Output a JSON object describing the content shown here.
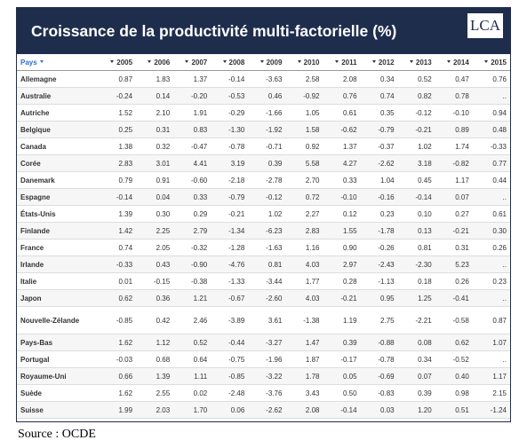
{
  "header": {
    "title": "Croissance de la productivité multi-factorielle (%)",
    "logo": "LCA"
  },
  "table": {
    "columns": [
      "Pays",
      "2005",
      "2006",
      "2007",
      "2008",
      "2009",
      "2010",
      "2011",
      "2012",
      "2013",
      "2014",
      "2015"
    ],
    "rows": [
      [
        "Allemagne",
        "0.87",
        "1.83",
        "1.37",
        "-0.14",
        "-3.63",
        "2.58",
        "2.08",
        "0.34",
        "0.52",
        "0.47",
        "0.76"
      ],
      [
        "Australie",
        "-0.24",
        "0.14",
        "-0.20",
        "-0.53",
        "0.46",
        "-0.92",
        "0.76",
        "0.74",
        "0.82",
        "0.78",
        ".."
      ],
      [
        "Autriche",
        "1.52",
        "2.10",
        "1.91",
        "-0.29",
        "-1.66",
        "1.05",
        "0.61",
        "0.35",
        "-0.12",
        "-0.10",
        "0.94"
      ],
      [
        "Belgique",
        "0.25",
        "0.31",
        "0.83",
        "-1.30",
        "-1.92",
        "1.58",
        "-0.62",
        "-0.79",
        "-0.21",
        "0.89",
        "0.48"
      ],
      [
        "Canada",
        "1.38",
        "0.32",
        "-0.47",
        "-0.78",
        "-0.71",
        "0.92",
        "1.37",
        "-0.37",
        "1.02",
        "1.74",
        "-0.33"
      ],
      [
        "Corée",
        "2.83",
        "3.01",
        "4.41",
        "3.19",
        "0.39",
        "5.58",
        "4.27",
        "-2.62",
        "3.18",
        "-0.82",
        "0.77"
      ],
      [
        "Danemark",
        "0.79",
        "0.91",
        "-0.60",
        "-2.18",
        "-2.78",
        "2.70",
        "0.33",
        "1.04",
        "0.45",
        "1.17",
        "0.44"
      ],
      [
        "Espagne",
        "-0.14",
        "0.04",
        "0.33",
        "-0.79",
        "-0.12",
        "0.72",
        "-0.10",
        "-0.16",
        "-0.14",
        "0.07",
        ".."
      ],
      [
        "États-Unis",
        "1.39",
        "0.30",
        "0.29",
        "-0.21",
        "1.02",
        "2.27",
        "0.12",
        "0.23",
        "0.10",
        "0.27",
        "0.61"
      ],
      [
        "Finlande",
        "1.42",
        "2.25",
        "2.79",
        "-1.34",
        "-6.23",
        "2.83",
        "1.55",
        "-1.78",
        "0.13",
        "-0.21",
        "0.30"
      ],
      [
        "France",
        "0.74",
        "2.05",
        "-0.32",
        "-1.28",
        "-1.63",
        "1.16",
        "0.90",
        "-0.26",
        "0.81",
        "0.31",
        "0.26"
      ],
      [
        "Irlande",
        "-0.33",
        "0.43",
        "-0.90",
        "-4.76",
        "0.81",
        "4.03",
        "2.97",
        "-2.43",
        "-2.30",
        "5.23",
        ".."
      ],
      [
        "Italie",
        "0.01",
        "-0.15",
        "-0.38",
        "-1.33",
        "-3.44",
        "1.77",
        "0.28",
        "-1.13",
        "0.18",
        "0.26",
        "0.23"
      ],
      [
        "Japon",
        "0.62",
        "0.36",
        "1.21",
        "-0.67",
        "-2.60",
        "4.03",
        "-0.21",
        "0.95",
        "1.25",
        "-0.41",
        ".."
      ],
      [
        "Nouvelle-Zélande",
        "-0.85",
        "0.42",
        "2.46",
        "-3.89",
        "3.61",
        "-1.38",
        "1.19",
        "2.75",
        "-2.21",
        "-0.58",
        "0.87"
      ],
      [
        "Pays-Bas",
        "1.62",
        "1.12",
        "0.52",
        "-0.44",
        "-3.27",
        "1.47",
        "0.39",
        "-0.88",
        "0.08",
        "0.62",
        "1.07"
      ],
      [
        "Portugal",
        "-0.03",
        "0.68",
        "0.64",
        "-0.75",
        "-1.96",
        "1.87",
        "-0.17",
        "-0.78",
        "0.34",
        "-0.52",
        ".."
      ],
      [
        "Royaume-Uni",
        "0.66",
        "1.39",
        "1.11",
        "-0.85",
        "-3.22",
        "1.78",
        "0.05",
        "-0.69",
        "0.07",
        "0.40",
        "1.17"
      ],
      [
        "Suède",
        "1.62",
        "2.55",
        "0.02",
        "-2.48",
        "-3.76",
        "3.43",
        "0.50",
        "-0.83",
        "0.39",
        "0.98",
        "2.15"
      ],
      [
        "Suisse",
        "1.99",
        "2.03",
        "1.70",
        "0.06",
        "-2.62",
        "2.08",
        "-0.14",
        "0.03",
        "1.20",
        "0.51",
        "-1.24"
      ]
    ]
  },
  "source": "Source : OCDE"
}
